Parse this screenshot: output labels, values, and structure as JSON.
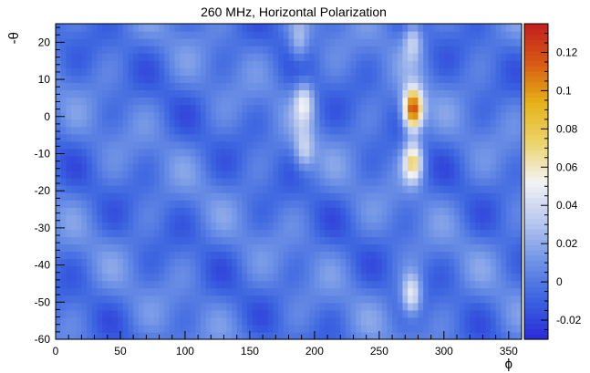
{
  "chart_data": {
    "type": "heatmap",
    "title": "260 MHz, Horizontal Polarization",
    "xlabel": "ϕ",
    "ylabel": "-θ",
    "xlim": [
      0,
      360
    ],
    "ylim": [
      -60,
      25
    ],
    "x_ticks": [
      0,
      50,
      100,
      150,
      200,
      250,
      300,
      350
    ],
    "y_ticks": [
      -60,
      -50,
      -40,
      -30,
      -20,
      -10,
      0,
      10,
      20
    ],
    "color_range": [
      -0.03,
      0.135
    ],
    "colorbar_ticks": [
      -0.02,
      0,
      0.02,
      0.04,
      0.06,
      0.08,
      0.1,
      0.12
    ],
    "colorbar_tick_labels": [
      "-0.02",
      "0",
      "0.02",
      "0.04",
      "0.06",
      "0.08",
      "0.1",
      "0.12"
    ],
    "background_level": 0.0,
    "peaks": [
      {
        "phi": 276,
        "theta": 2,
        "value": 0.13
      },
      {
        "phi": 276,
        "theta": -12,
        "value": 0.072
      },
      {
        "phi": 276,
        "theta": 21,
        "value": 0.038
      },
      {
        "phi": 275,
        "theta": -48,
        "value": 0.055
      },
      {
        "phi": 192,
        "theta": 4,
        "value": 0.045
      },
      {
        "phi": 192,
        "theta": -9,
        "value": 0.035
      },
      {
        "phi": 188,
        "theta": 20,
        "value": 0.03
      }
    ],
    "palette": [
      "#2a2ad6",
      "#3b63e0",
      "#6f93e6",
      "#b9c8ee",
      "#f3f3f5",
      "#ecd36a",
      "#e5b317",
      "#d85a14",
      "#c21e1e"
    ]
  }
}
